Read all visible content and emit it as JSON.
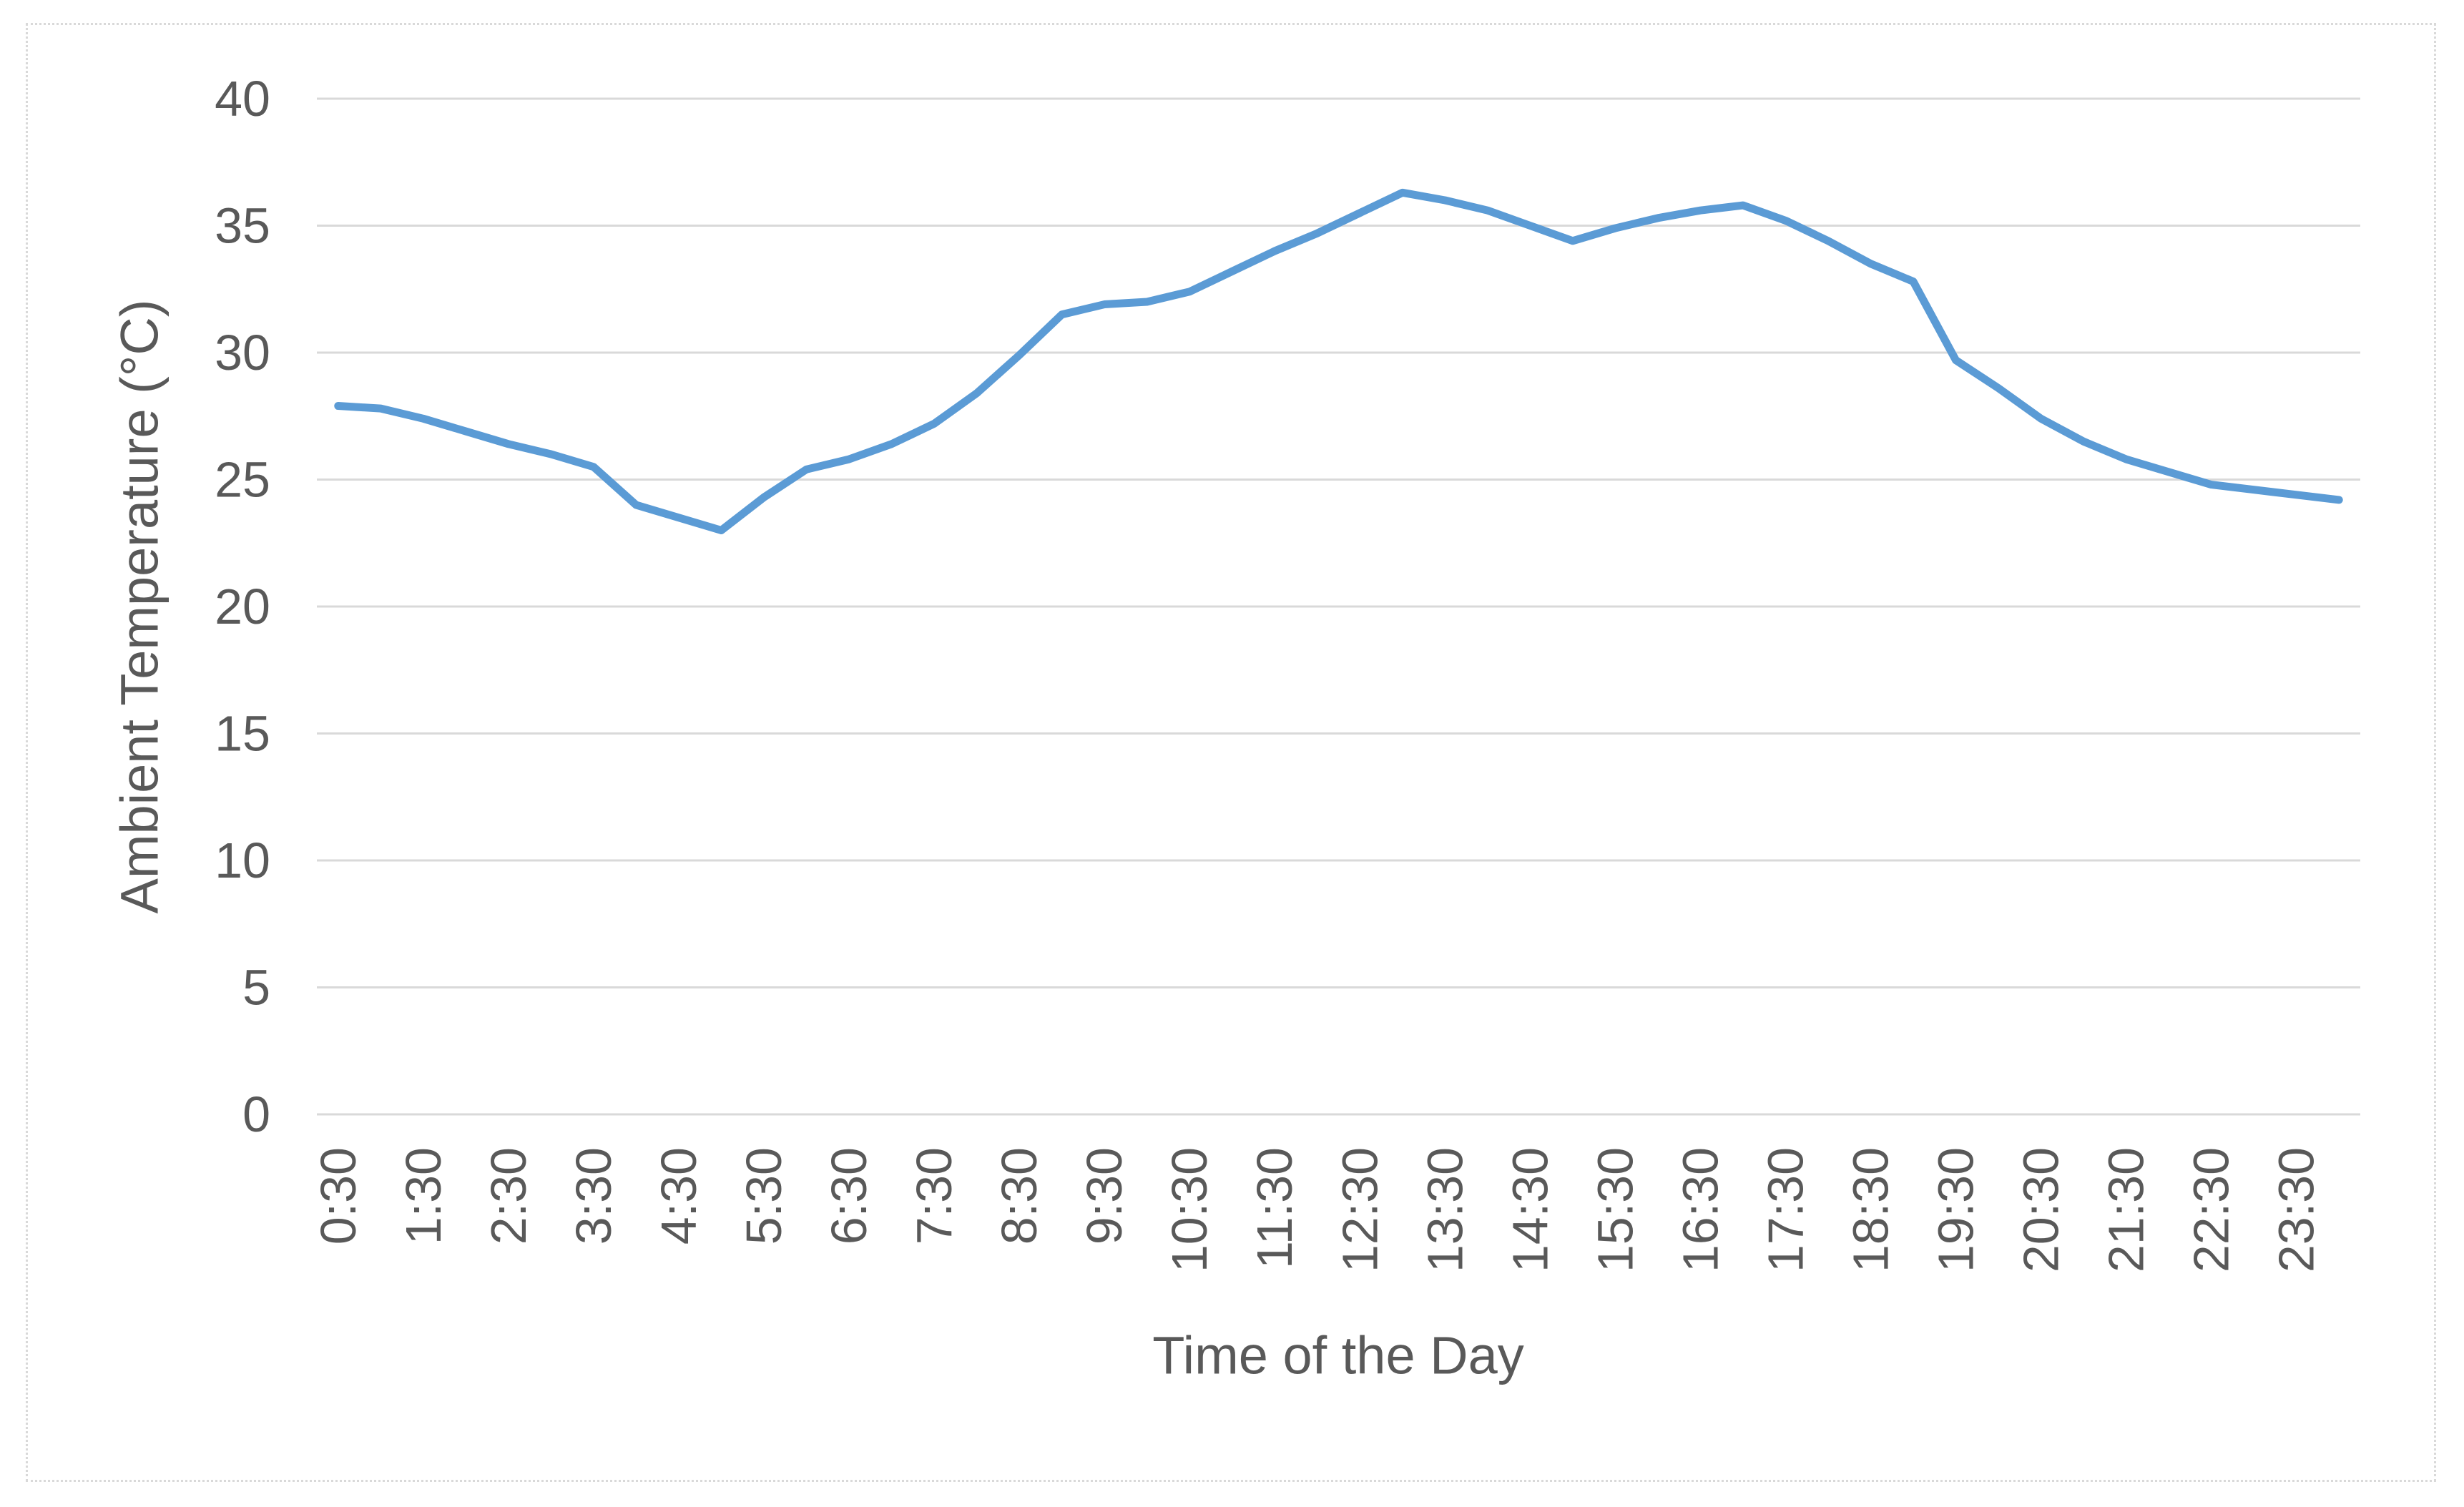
{
  "chart": {
    "y_axis_title": "Ambient Temperature (°C)",
    "x_axis_title": "Time of the Day"
  },
  "chart_data": {
    "type": "line",
    "title": "",
    "xlabel": "Time of the Day",
    "ylabel": "Ambient Temperature (°C)",
    "x": [
      "0:30",
      "1:00",
      "1:30",
      "2:00",
      "2:30",
      "3:00",
      "3:30",
      "4:00",
      "4:30",
      "5:00",
      "5:30",
      "6:00",
      "6:30",
      "7:00",
      "7:30",
      "8:00",
      "8:30",
      "9:00",
      "9:30",
      "10:00",
      "10:30",
      "11:00",
      "11:30",
      "12:00",
      "12:30",
      "13:00",
      "13:30",
      "14:00",
      "14:30",
      "15:00",
      "15:30",
      "16:00",
      "16:30",
      "17:00",
      "17:30",
      "18:00",
      "18:30",
      "19:00",
      "19:30",
      "20:00",
      "20:30",
      "21:00",
      "21:30",
      "22:00",
      "22:30",
      "23:00",
      "23:30",
      "0:00"
    ],
    "values": [
      27.9,
      27.8,
      27.4,
      26.9,
      26.4,
      26.0,
      25.5,
      24.0,
      23.5,
      23.0,
      24.3,
      25.4,
      25.8,
      26.4,
      27.2,
      28.4,
      29.9,
      31.5,
      31.9,
      32.0,
      32.4,
      33.2,
      34.0,
      34.7,
      35.5,
      36.3,
      36.0,
      35.6,
      35.0,
      34.4,
      34.9,
      35.3,
      35.6,
      35.8,
      35.2,
      34.4,
      33.5,
      32.8,
      29.7,
      28.6,
      27.4,
      26.5,
      25.8,
      25.3,
      24.8,
      24.6,
      24.4,
      24.2
    ],
    "x_tick_labels": [
      "0:30",
      "1:30",
      "2:30",
      "3:30",
      "4:30",
      "5:30",
      "6:30",
      "7:30",
      "8:30",
      "9:30",
      "10:30",
      "11:30",
      "12:30",
      "13:30",
      "14:30",
      "15:30",
      "16:30",
      "17:30",
      "18:30",
      "19:30",
      "20:30",
      "21:30",
      "22:30",
      "23:30"
    ],
    "yticks": [
      0,
      5,
      10,
      15,
      20,
      25,
      30,
      35,
      40
    ],
    "ylim": [
      0,
      40
    ],
    "grid": true,
    "legend": false,
    "line_color": "#5B9BD5",
    "gridline_color": "#D9D9D9",
    "text_color": "#595959"
  }
}
